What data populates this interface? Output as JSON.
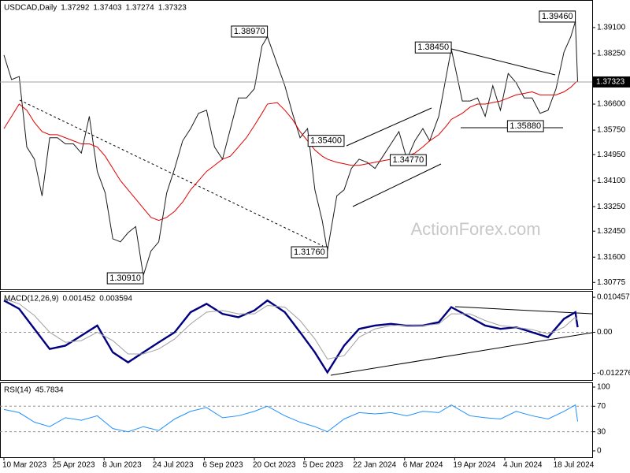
{
  "chart_data": [
    {
      "type": "line",
      "title": "USDCAD,Daily",
      "ohlc": {
        "open": 1.37292,
        "high": 1.37403,
        "low": 1.37274,
        "close": 1.37323
      },
      "watermark": "ActionForex.com",
      "xticks": [
        "10 Mar 2023",
        "25 Apr 2023",
        "8 Jun 2023",
        "24 Jul 2023",
        "6 Sep 2023",
        "20 Oct 2023",
        "5 Dec 2023",
        "22 Jan 2024",
        "6 Mar 2024",
        "19 Apr 2024",
        "4 Jun 2024",
        "18 Jul 2024"
      ],
      "x": [
        "10 Mar 2023",
        "17 Mar 2023",
        "24 Mar 2023",
        "31 Mar 2023",
        "7 Apr 2023",
        "14 Apr 2023",
        "21 Apr 2023",
        "28 Apr 2023",
        "5 May 2023",
        "12 May 2023",
        "19 May 2023",
        "26 May 2023",
        "2 Jun 2023",
        "9 Jun 2023",
        "16 Jun 2023",
        "23 Jun 2023",
        "30 Jun 2023",
        "7 Jul 2023",
        "14 Jul 2023",
        "21 Jul 2023",
        "28 Jul 2023",
        "4 Aug 2023",
        "11 Aug 2023",
        "18 Aug 2023",
        "25 Aug 2023",
        "1 Sep 2023",
        "8 Sep 2023",
        "15 Sep 2023",
        "22 Sep 2023",
        "29 Sep 2023",
        "6 Oct 2023",
        "13 Oct 2023",
        "20 Oct 2023",
        "27 Oct 2023",
        "1 Nov 2023",
        "10 Nov 2023",
        "17 Nov 2023",
        "24 Nov 2023",
        "1 Dec 2023",
        "8 Dec 2023",
        "15 Dec 2023",
        "22 Dec 2023",
        "27 Dec 2023",
        "5 Jan 2024",
        "12 Jan 2024",
        "19 Jan 2024",
        "26 Jan 2024",
        "2 Feb 2024",
        "9 Feb 2024",
        "16 Feb 2024",
        "23 Feb 2024",
        "1 Mar 2024",
        "8 Mar 2024",
        "15 Mar 2024",
        "22 Mar 2024",
        "28 Mar 2024",
        "5 Apr 2024",
        "12 Apr 2024",
        "16 Apr 2024",
        "26 Apr 2024",
        "3 May 2024",
        "10 May 2024",
        "17 May 2024",
        "24 May 2024",
        "31 May 2024",
        "7 Jun 2024",
        "14 Jun 2024",
        "21 Jun 2024",
        "28 Jun 2024",
        "5 Jul 2024",
        "12 Jul 2024",
        "19 Jul 2024",
        "26 Jul 2024",
        "1 Aug 2024",
        "5 Aug 2024",
        "7 Aug 2024"
      ],
      "series": [
        {
          "color": "#1a1a1a",
          "values": [
            1.382,
            1.374,
            1.375,
            1.352,
            1.348,
            1.336,
            1.355,
            1.355,
            1.353,
            1.353,
            1.35,
            1.362,
            1.344,
            1.337,
            1.322,
            1.321,
            1.324,
            1.326,
            1.31,
            1.318,
            1.321,
            1.337,
            1.345,
            1.354,
            1.358,
            1.363,
            1.364,
            1.352,
            1.348,
            1.358,
            1.368,
            1.368,
            1.371,
            1.385,
            1.388,
            1.379,
            1.372,
            1.363,
            1.355,
            1.358,
            1.338,
            1.328,
            1.318,
            1.336,
            1.338,
            1.345,
            1.348,
            1.347,
            1.345,
            1.349,
            1.353,
            1.357,
            1.348,
            1.354,
            1.358,
            1.354,
            1.362,
            1.376,
            1.384,
            1.367,
            1.367,
            1.368,
            1.362,
            1.372,
            1.364,
            1.376,
            1.373,
            1.368,
            1.368,
            1.363,
            1.364,
            1.371,
            1.383,
            1.388,
            1.393,
            1.3732
          ]
        },
        {
          "color": "#e00000",
          "values": [
            1.358,
            1.362,
            1.366,
            1.364,
            1.36,
            1.357,
            1.356,
            1.356,
            1.355,
            1.354,
            1.353,
            1.353,
            1.352,
            1.349,
            1.345,
            1.341,
            1.338,
            1.335,
            1.332,
            1.329,
            1.328,
            1.329,
            1.331,
            1.334,
            1.338,
            1.341,
            1.344,
            1.346,
            1.348,
            1.349,
            1.352,
            1.355,
            1.359,
            1.363,
            1.366,
            1.3665,
            1.364,
            1.361,
            1.357,
            1.354,
            1.351,
            1.349,
            1.348,
            1.347,
            1.3465,
            1.346,
            1.346,
            1.3465,
            1.347,
            1.3475,
            1.348,
            1.3485,
            1.349,
            1.35,
            1.352,
            1.354,
            1.356,
            1.359,
            1.361,
            1.363,
            1.365,
            1.366,
            1.366,
            1.3665,
            1.367,
            1.368,
            1.369,
            1.3695,
            1.37,
            1.369,
            1.369,
            1.369,
            1.37,
            1.3715,
            1.373,
            1.3735
          ]
        }
      ],
      "ylim": [
        1.3055,
        1.4
      ],
      "yticks": [
        {
          "value": 1.391,
          "label": "1.39100"
        },
        {
          "value": 1.3825,
          "label": "1.38250"
        },
        {
          "value": 1.366,
          "label": "1.36600"
        },
        {
          "value": 1.3575,
          "label": "1.35750"
        },
        {
          "value": 1.3495,
          "label": "1.34950"
        },
        {
          "value": 1.341,
          "label": "1.34100"
        },
        {
          "value": 1.3325,
          "label": "1.33250"
        },
        {
          "value": 1.3245,
          "label": "1.32450"
        },
        {
          "value": 1.316,
          "label": "1.31600"
        },
        {
          "value": 1.30775,
          "label": "1.30775"
        }
      ],
      "annotations": [
        {
          "label": "1.39460",
          "value": 1.3946,
          "date": "5 Aug 2024"
        },
        {
          "label": "1.38970",
          "value": 1.3897,
          "date": "1 Nov 2023"
        },
        {
          "label": "1.38450",
          "value": 1.3845,
          "date": "16 Apr 2024"
        },
        {
          "label": "1.35400",
          "value": 1.354,
          "date": "12 Jan 2024"
        },
        {
          "label": "1.34770",
          "value": 1.3477,
          "date": "25 Mar 2024"
        },
        {
          "label": "1.35880",
          "value": 1.3588,
          "date": "8 Jul 2024"
        },
        {
          "label": "1.31760",
          "value": 1.3176,
          "date": "27 Dec 2023"
        },
        {
          "label": "1.30910",
          "value": 1.3091,
          "date": "14 Jul 2023"
        }
      ]
    },
    {
      "type": "line",
      "title": "MACD(12,26,9)",
      "readings": [
        0.001452,
        0.003594
      ],
      "x": [
        "10 Mar 2023",
        "24 Mar 2023",
        "7 Apr 2023",
        "21 Apr 2023",
        "5 May 2023",
        "19 May 2023",
        "2 Jun 2023",
        "16 Jun 2023",
        "30 Jun 2023",
        "14 Jul 2023",
        "28 Jul 2023",
        "11 Aug 2023",
        "25 Aug 2023",
        "8 Sep 2023",
        "22 Sep 2023",
        "6 Oct 2023",
        "20 Oct 2023",
        "1 Nov 2023",
        "17 Nov 2023",
        "1 Dec 2023",
        "15 Dec 2023",
        "27 Dec 2023",
        "12 Jan 2024",
        "26 Jan 2024",
        "9 Feb 2024",
        "23 Feb 2024",
        "8 Mar 2024",
        "22 Mar 2024",
        "5 Apr 2024",
        "16 Apr 2024",
        "3 May 2024",
        "17 May 2024",
        "31 May 2024",
        "14 Jun 2024",
        "28 Jun 2024",
        "12 Jul 2024",
        "26 Jul 2024",
        "5 Aug 2024",
        "7 Aug 2024"
      ],
      "series": [
        {
          "color": "#000080",
          "values": [
            0.0095,
            0.007,
            0.001,
            -0.005,
            -0.004,
            -0.001,
            0.002,
            -0.006,
            -0.009,
            -0.006,
            -0.003,
            0.0,
            0.006,
            0.0085,
            0.0055,
            0.0045,
            0.0065,
            0.0095,
            0.006,
            0.0,
            -0.006,
            -0.012,
            -0.004,
            0.001,
            0.002,
            0.0025,
            0.002,
            0.002,
            0.003,
            0.0075,
            0.0045,
            0.002,
            0.001,
            0.0015,
            0.0,
            -0.0015,
            0.004,
            0.006,
            0.0015
          ]
        },
        {
          "color": "#a0a0a0",
          "values": [
            0.01,
            0.0085,
            0.005,
            0.0,
            -0.003,
            -0.0025,
            0.0,
            -0.0025,
            -0.0065,
            -0.0065,
            -0.005,
            -0.002,
            0.0025,
            0.006,
            0.0065,
            0.0055,
            0.0055,
            0.008,
            0.0075,
            0.0035,
            -0.002,
            -0.008,
            -0.007,
            -0.0015,
            0.001,
            0.002,
            0.0022,
            0.002,
            0.0025,
            0.0055,
            0.0055,
            0.0035,
            0.002,
            0.0015,
            0.0008,
            -0.0005,
            0.0015,
            0.0045,
            0.0036
          ]
        }
      ],
      "ylim": [
        -0.01426,
        0.01236
      ],
      "yticks": [
        0.010457,
        {
          "value": 0,
          "label": "0.00"
        },
        -0.012276
      ],
      "levels": [
        0
      ]
    },
    {
      "type": "line",
      "title": "RSI(14)",
      "readings": [
        45.7834
      ],
      "x": [
        "10 Mar 2023",
        "24 Mar 2023",
        "7 Apr 2023",
        "21 Apr 2023",
        "5 May 2023",
        "19 May 2023",
        "2 Jun 2023",
        "16 Jun 2023",
        "30 Jun 2023",
        "14 Jul 2023",
        "28 Jul 2023",
        "11 Aug 2023",
        "25 Aug 2023",
        "8 Sep 2023",
        "22 Sep 2023",
        "6 Oct 2023",
        "20 Oct 2023",
        "1 Nov 2023",
        "17 Nov 2023",
        "1 Dec 2023",
        "15 Dec 2023",
        "27 Dec 2023",
        "12 Jan 2024",
        "26 Jan 2024",
        "9 Feb 2024",
        "23 Feb 2024",
        "8 Mar 2024",
        "22 Mar 2024",
        "5 Apr 2024",
        "16 Apr 2024",
        "3 May 2024",
        "17 May 2024",
        "31 May 2024",
        "14 Jun 2024",
        "28 Jun 2024",
        "12 Jul 2024",
        "26 Jul 2024",
        "5 Aug 2024",
        "7 Aug 2024"
      ],
      "series": [
        {
          "color": "#1e90ff",
          "values": [
            65,
            60,
            45,
            38,
            52,
            48,
            55,
            35,
            30,
            38,
            32,
            50,
            62,
            68,
            52,
            55,
            62,
            70,
            55,
            45,
            38,
            30,
            50,
            60,
            58,
            60,
            55,
            62,
            60,
            72,
            55,
            52,
            50,
            62,
            55,
            50,
            62,
            72,
            46
          ]
        }
      ],
      "ylim": [
        -9.9,
        107.4
      ],
      "yticks": [
        100,
        70,
        30,
        0
      ],
      "levels": [
        70,
        30
      ]
    }
  ]
}
